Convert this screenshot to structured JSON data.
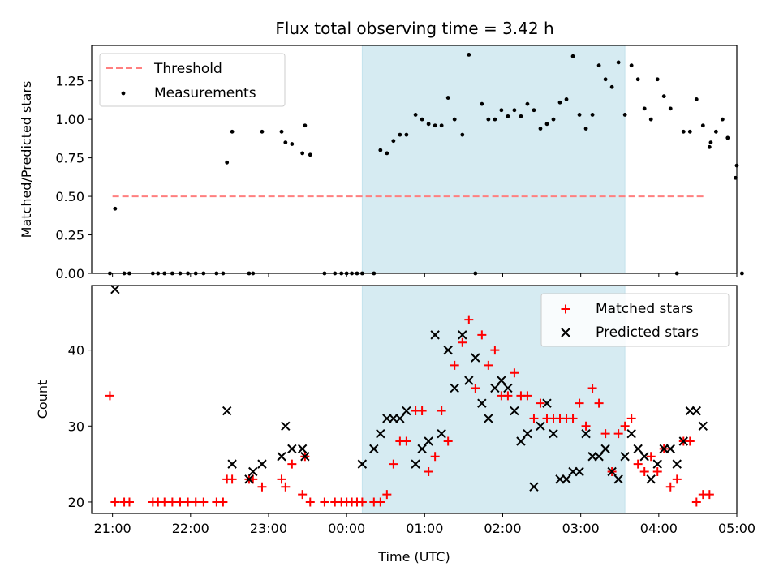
{
  "chart_data": [
    {
      "type": "scatter",
      "title": "Flux total observing time = 3.42 h",
      "xlabel": "",
      "ylabel": "Matched/Predicted stars",
      "xlim": [
        "20:44",
        "05:00"
      ],
      "ylim": [
        0,
        1.48
      ],
      "yticks": [
        0.0,
        0.25,
        0.5,
        0.75,
        1.0,
        1.25
      ],
      "ytick_labels": [
        "0.00",
        "0.25",
        "0.50",
        "0.75",
        "1.00",
        "1.25"
      ],
      "xticks": [
        "21:00",
        "22:00",
        "23:00",
        "00:00",
        "01:00",
        "02:00",
        "03:00",
        "04:00",
        "05:00"
      ],
      "shaded_region": {
        "start": "00:12",
        "end": "03:34",
        "color": "#add8e6"
      },
      "legend_position": "upper left",
      "series": [
        {
          "name": "Threshold",
          "style": "dashed-line",
          "color": "#ff7f7f",
          "x": [
            "21:00",
            "04:36"
          ],
          "y": [
            0.5,
            0.5
          ]
        },
        {
          "name": "Measurements",
          "style": "dot",
          "color": "#000000",
          "points": [
            [
              "20:58",
              0.0
            ],
            [
              "21:02",
              0.42
            ],
            [
              "21:09",
              0.0
            ],
            [
              "21:13",
              0.0
            ],
            [
              "21:31",
              0.0
            ],
            [
              "21:35",
              0.0
            ],
            [
              "21:40",
              0.0
            ],
            [
              "21:46",
              0.0
            ],
            [
              "21:52",
              0.0
            ],
            [
              "21:58",
              0.0
            ],
            [
              "22:04",
              0.0
            ],
            [
              "22:10",
              0.0
            ],
            [
              "22:20",
              0.0
            ],
            [
              "22:25",
              0.0
            ],
            [
              "22:28",
              0.72
            ],
            [
              "22:32",
              0.92
            ],
            [
              "22:45",
              0.0
            ],
            [
              "22:48",
              0.0
            ],
            [
              "22:55",
              0.92
            ],
            [
              "23:10",
              0.92
            ],
            [
              "23:13",
              0.85
            ],
            [
              "23:18",
              0.84
            ],
            [
              "23:26",
              0.78
            ],
            [
              "23:28",
              0.96
            ],
            [
              "23:32",
              0.77
            ],
            [
              "23:43",
              0.0
            ],
            [
              "23:51",
              0.0
            ],
            [
              "23:56",
              0.0
            ],
            [
              "00:00",
              0.0
            ],
            [
              "00:04",
              0.0
            ],
            [
              "00:08",
              0.0
            ],
            [
              "00:12",
              0.0
            ],
            [
              "00:21",
              0.0
            ],
            [
              "00:26",
              0.8
            ],
            [
              "00:31",
              0.78
            ],
            [
              "00:36",
              0.86
            ],
            [
              "00:41",
              0.9
            ],
            [
              "00:46",
              0.9
            ],
            [
              "00:53",
              1.03
            ],
            [
              "00:58",
              1.0
            ],
            [
              "01:03",
              0.97
            ],
            [
              "01:08",
              0.96
            ],
            [
              "01:13",
              0.96
            ],
            [
              "01:18",
              1.14
            ],
            [
              "01:23",
              1.0
            ],
            [
              "01:29",
              0.9
            ],
            [
              "01:34",
              1.42
            ],
            [
              "01:39",
              0.0
            ],
            [
              "01:44",
              1.1
            ],
            [
              "01:49",
              1.0
            ],
            [
              "01:54",
              1.0
            ],
            [
              "01:59",
              1.06
            ],
            [
              "02:04",
              1.02
            ],
            [
              "02:09",
              1.06
            ],
            [
              "02:14",
              1.02
            ],
            [
              "02:19",
              1.1
            ],
            [
              "02:24",
              1.06
            ],
            [
              "02:29",
              0.94
            ],
            [
              "02:34",
              0.97
            ],
            [
              "02:39",
              1.0
            ],
            [
              "02:44",
              1.11
            ],
            [
              "02:49",
              1.13
            ],
            [
              "02:54",
              1.41
            ],
            [
              "02:59",
              1.03
            ],
            [
              "03:04",
              0.94
            ],
            [
              "03:09",
              1.03
            ],
            [
              "03:14",
              1.35
            ],
            [
              "03:19",
              1.26
            ],
            [
              "03:24",
              1.21
            ],
            [
              "03:29",
              1.37
            ],
            [
              "03:34",
              1.03
            ],
            [
              "03:39",
              1.35
            ],
            [
              "03:44",
              1.26
            ],
            [
              "03:49",
              1.07
            ],
            [
              "03:54",
              1.0
            ],
            [
              "03:59",
              1.26
            ],
            [
              "04:04",
              1.15
            ],
            [
              "04:09",
              1.07
            ],
            [
              "04:14",
              0.0
            ],
            [
              "04:19",
              0.92
            ],
            [
              "04:24",
              0.92
            ],
            [
              "04:29",
              1.13
            ],
            [
              "04:34",
              0.96
            ],
            [
              "04:39",
              0.82
            ],
            [
              "04:40",
              0.85
            ],
            [
              "04:44",
              0.92
            ],
            [
              "04:49",
              1.0
            ],
            [
              "04:53",
              0.88
            ],
            [
              "04:59",
              0.62
            ],
            [
              "05:00",
              0.7
            ],
            [
              "05:04",
              0.0
            ]
          ]
        }
      ]
    },
    {
      "type": "scatter",
      "xlabel": "Time (UTC)",
      "ylabel": "Count",
      "xlim": [
        "20:44",
        "05:00"
      ],
      "ylim": [
        18.5,
        48.5
      ],
      "yticks": [
        20,
        30,
        40
      ],
      "xticks": [
        "21:00",
        "22:00",
        "23:00",
        "00:00",
        "01:00",
        "02:00",
        "03:00",
        "04:00",
        "05:00"
      ],
      "xtick_labels": [
        "21:00",
        "22:00",
        "23:00",
        "00:00",
        "01:00",
        "02:00",
        "03:00",
        "04:00",
        "05:00"
      ],
      "shaded_region": {
        "start": "00:12",
        "end": "03:34",
        "color": "#add8e6"
      },
      "legend_position": "upper right",
      "series": [
        {
          "name": "Matched stars",
          "marker": "+",
          "color": "#ff0000",
          "points": [
            [
              "20:58",
              34
            ],
            [
              "21:02",
              20
            ],
            [
              "21:09",
              20
            ],
            [
              "21:13",
              20
            ],
            [
              "21:31",
              20
            ],
            [
              "21:35",
              20
            ],
            [
              "21:40",
              20
            ],
            [
              "21:46",
              20
            ],
            [
              "21:52",
              20
            ],
            [
              "21:58",
              20
            ],
            [
              "22:04",
              20
            ],
            [
              "22:10",
              20
            ],
            [
              "22:20",
              20
            ],
            [
              "22:25",
              20
            ],
            [
              "22:28",
              23
            ],
            [
              "22:32",
              23
            ],
            [
              "22:45",
              23
            ],
            [
              "22:48",
              23
            ],
            [
              "22:55",
              22
            ],
            [
              "23:10",
              23
            ],
            [
              "23:13",
              22
            ],
            [
              "23:18",
              25
            ],
            [
              "23:26",
              21
            ],
            [
              "23:28",
              26
            ],
            [
              "23:32",
              20
            ],
            [
              "23:43",
              20
            ],
            [
              "23:51",
              20
            ],
            [
              "23:56",
              20
            ],
            [
              "00:00",
              20
            ],
            [
              "00:04",
              20
            ],
            [
              "00:08",
              20
            ],
            [
              "00:12",
              20
            ],
            [
              "00:21",
              20
            ],
            [
              "00:26",
              20
            ],
            [
              "00:31",
              21
            ],
            [
              "00:36",
              25
            ],
            [
              "00:41",
              28
            ],
            [
              "00:46",
              28
            ],
            [
              "00:53",
              32
            ],
            [
              "00:58",
              32
            ],
            [
              "01:03",
              24
            ],
            [
              "01:08",
              26
            ],
            [
              "01:13",
              32
            ],
            [
              "01:18",
              28
            ],
            [
              "01:23",
              38
            ],
            [
              "01:29",
              41
            ],
            [
              "01:34",
              44
            ],
            [
              "01:39",
              35
            ],
            [
              "01:44",
              42
            ],
            [
              "01:49",
              38
            ],
            [
              "01:54",
              40
            ],
            [
              "01:59",
              34
            ],
            [
              "02:04",
              34
            ],
            [
              "02:09",
              37
            ],
            [
              "02:14",
              34
            ],
            [
              "02:19",
              34
            ],
            [
              "02:24",
              31
            ],
            [
              "02:29",
              33
            ],
            [
              "02:34",
              31
            ],
            [
              "02:39",
              31
            ],
            [
              "02:44",
              31
            ],
            [
              "02:49",
              31
            ],
            [
              "02:54",
              31
            ],
            [
              "02:59",
              33
            ],
            [
              "03:04",
              30
            ],
            [
              "03:09",
              35
            ],
            [
              "03:14",
              33
            ],
            [
              "03:19",
              29
            ],
            [
              "03:24",
              24
            ],
            [
              "03:29",
              29
            ],
            [
              "03:34",
              30
            ],
            [
              "03:39",
              31
            ],
            [
              "03:44",
              25
            ],
            [
              "03:49",
              24
            ],
            [
              "03:54",
              26
            ],
            [
              "03:59",
              24
            ],
            [
              "04:04",
              27
            ],
            [
              "04:09",
              22
            ],
            [
              "04:14",
              23
            ],
            [
              "04:19",
              28
            ],
            [
              "04:24",
              28
            ],
            [
              "04:29",
              20
            ],
            [
              "04:34",
              21
            ],
            [
              "04:39",
              21
            ]
          ]
        },
        {
          "name": "Predicted stars",
          "marker": "x",
          "color": "#000000",
          "points": [
            [
              "21:02",
              48
            ],
            [
              "22:28",
              32
            ],
            [
              "22:32",
              25
            ],
            [
              "22:45",
              23
            ],
            [
              "22:48",
              24
            ],
            [
              "22:55",
              25
            ],
            [
              "23:10",
              26
            ],
            [
              "23:13",
              30
            ],
            [
              "23:18",
              27
            ],
            [
              "23:26",
              27
            ],
            [
              "23:28",
              26
            ],
            [
              "00:12",
              25
            ],
            [
              "00:21",
              27
            ],
            [
              "00:26",
              29
            ],
            [
              "00:31",
              31
            ],
            [
              "00:36",
              31
            ],
            [
              "00:41",
              31
            ],
            [
              "00:46",
              32
            ],
            [
              "00:53",
              25
            ],
            [
              "00:58",
              27
            ],
            [
              "01:03",
              28
            ],
            [
              "01:08",
              42
            ],
            [
              "01:13",
              29
            ],
            [
              "01:18",
              40
            ],
            [
              "01:23",
              35
            ],
            [
              "01:29",
              42
            ],
            [
              "01:34",
              36
            ],
            [
              "01:39",
              39
            ],
            [
              "01:44",
              33
            ],
            [
              "01:49",
              31
            ],
            [
              "01:54",
              35
            ],
            [
              "01:59",
              36
            ],
            [
              "02:04",
              35
            ],
            [
              "02:09",
              32
            ],
            [
              "02:14",
              28
            ],
            [
              "02:19",
              29
            ],
            [
              "02:24",
              22
            ],
            [
              "02:29",
              30
            ],
            [
              "02:34",
              33
            ],
            [
              "02:39",
              29
            ],
            [
              "02:44",
              23
            ],
            [
              "02:49",
              23
            ],
            [
              "02:54",
              24
            ],
            [
              "02:59",
              24
            ],
            [
              "03:04",
              29
            ],
            [
              "03:09",
              26
            ],
            [
              "03:14",
              26
            ],
            [
              "03:19",
              27
            ],
            [
              "03:24",
              24
            ],
            [
              "03:29",
              23
            ],
            [
              "03:34",
              26
            ],
            [
              "03:39",
              29
            ],
            [
              "03:44",
              27
            ],
            [
              "03:49",
              26
            ],
            [
              "03:54",
              23
            ],
            [
              "03:59",
              25
            ],
            [
              "04:04",
              27
            ],
            [
              "04:09",
              27
            ],
            [
              "04:14",
              25
            ],
            [
              "04:19",
              28
            ],
            [
              "04:24",
              32
            ],
            [
              "04:29",
              32
            ],
            [
              "04:34",
              30
            ]
          ]
        }
      ]
    }
  ]
}
